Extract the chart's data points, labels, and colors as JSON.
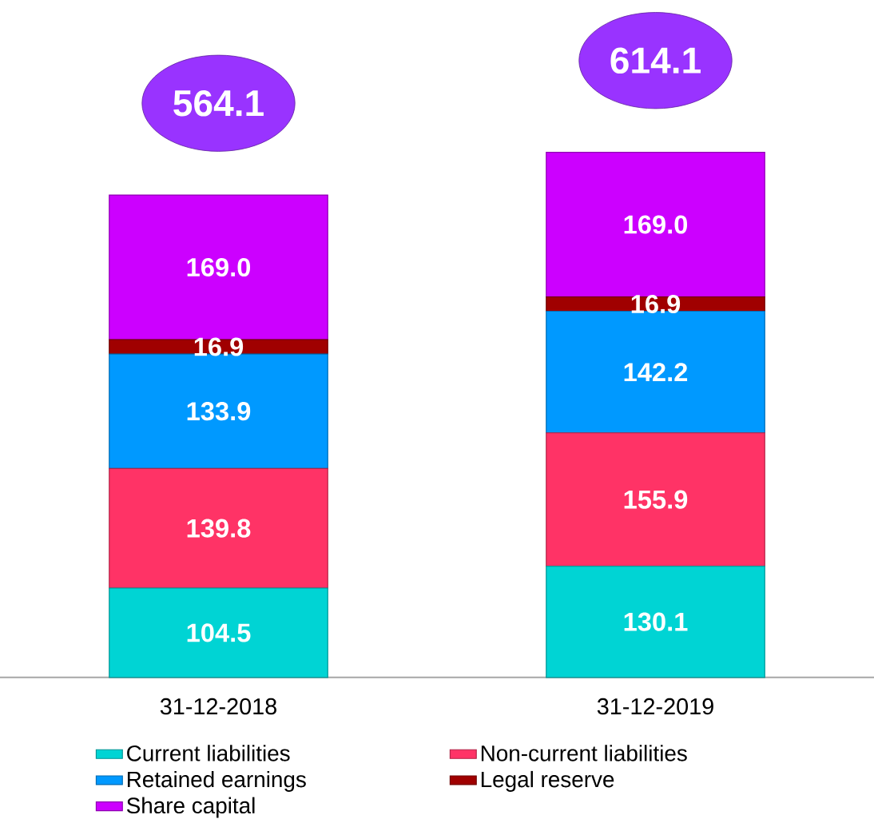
{
  "chart_data": {
    "type": "bar",
    "stacked": true,
    "categories": [
      "31-12-2018",
      "31-12-2019"
    ],
    "series": [
      {
        "name": "Current liabilities",
        "color": "#00d4d4",
        "values": [
          104.5,
          130.1
        ],
        "value_labels": [
          "104.5",
          "130.1"
        ]
      },
      {
        "name": "Non-current liabilities",
        "color": "#ff3366",
        "values": [
          139.8,
          155.9
        ],
        "value_labels": [
          "139.8",
          "155.9"
        ]
      },
      {
        "name": "Retained earnings",
        "color": "#0099ff",
        "values": [
          133.9,
          142.2
        ],
        "value_labels": [
          "133.9",
          "142.2"
        ]
      },
      {
        "name": "Legal reserve",
        "color": "#a00000",
        "values": [
          16.9,
          16.9
        ],
        "value_labels": [
          "16.9",
          "16.9"
        ]
      },
      {
        "name": "Share capital",
        "color": "#cc00ff",
        "values": [
          169.0,
          169.0
        ],
        "value_labels": [
          "169.0",
          "169.0"
        ]
      }
    ],
    "totals": [
      "564.1",
      "614.1"
    ],
    "legend": "bottom",
    "grid": false
  }
}
